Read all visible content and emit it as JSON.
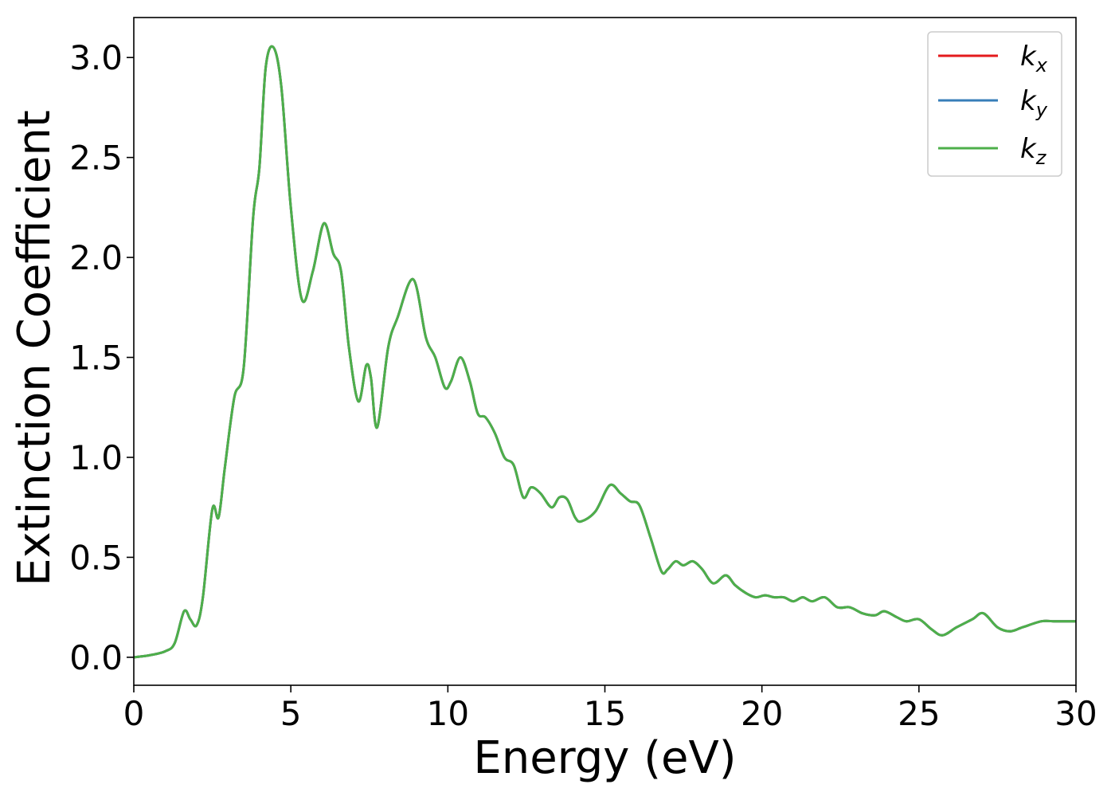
{
  "chart_data": {
    "type": "line",
    "title": "",
    "xlabel": "Energy (eV)",
    "ylabel": "Extinction Coefficient",
    "xlim": [
      0,
      30
    ],
    "ylim": [
      -0.14,
      3.2
    ],
    "xticks": [
      0,
      5,
      10,
      15,
      20,
      25,
      30
    ],
    "xtick_labels": [
      "0",
      "5",
      "10",
      "15",
      "20",
      "25",
      "30"
    ],
    "yticks": [
      0.0,
      0.5,
      1.0,
      1.5,
      2.0,
      2.5,
      3.0
    ],
    "ytick_labels": [
      "0.0",
      "0.5",
      "1.0",
      "1.5",
      "2.0",
      "2.5",
      "3.0"
    ],
    "grid": false,
    "legend_position": "top-right",
    "x": [
      0,
      0.5,
      1.0,
      1.3,
      1.6,
      1.8,
      2.0,
      2.2,
      2.5,
      2.7,
      2.9,
      3.2,
      3.5,
      3.8,
      4.0,
      4.2,
      4.45,
      4.7,
      5.0,
      5.35,
      5.7,
      6.05,
      6.35,
      6.6,
      6.85,
      7.15,
      7.4,
      7.55,
      7.75,
      8.1,
      8.4,
      8.9,
      9.3,
      9.6,
      9.9,
      10.1,
      10.4,
      10.7,
      10.95,
      11.2,
      11.5,
      11.8,
      12.1,
      12.4,
      12.65,
      12.95,
      13.3,
      13.55,
      13.8,
      14.05,
      14.25,
      14.7,
      15.15,
      15.5,
      15.8,
      16.1,
      16.45,
      16.8,
      17.0,
      17.25,
      17.5,
      17.8,
      18.1,
      18.45,
      18.85,
      19.15,
      19.5,
      19.8,
      20.1,
      20.4,
      20.7,
      21.0,
      21.3,
      21.6,
      22.0,
      22.4,
      22.8,
      23.2,
      23.6,
      23.9,
      24.3,
      24.6,
      25.0,
      25.4,
      25.75,
      26.2,
      26.7,
      27.05,
      27.5,
      27.9,
      28.3,
      28.9,
      29.3,
      29.7,
      30.0
    ],
    "series": [
      {
        "name": "k_x",
        "color": "#e41a1c",
        "values": [
          0.0,
          0.01,
          0.03,
          0.07,
          0.23,
          0.19,
          0.16,
          0.3,
          0.74,
          0.7,
          0.95,
          1.3,
          1.45,
          2.2,
          2.45,
          2.95,
          3.05,
          2.85,
          2.25,
          1.79,
          1.93,
          2.17,
          2.02,
          1.93,
          1.55,
          1.28,
          1.46,
          1.4,
          1.15,
          1.55,
          1.7,
          1.89,
          1.6,
          1.5,
          1.35,
          1.38,
          1.5,
          1.38,
          1.22,
          1.2,
          1.12,
          1.0,
          0.96,
          0.8,
          0.85,
          0.82,
          0.75,
          0.8,
          0.79,
          0.7,
          0.68,
          0.73,
          0.86,
          0.82,
          0.78,
          0.76,
          0.6,
          0.43,
          0.44,
          0.48,
          0.46,
          0.48,
          0.44,
          0.37,
          0.41,
          0.36,
          0.32,
          0.3,
          0.31,
          0.3,
          0.3,
          0.28,
          0.3,
          0.28,
          0.3,
          0.25,
          0.25,
          0.22,
          0.21,
          0.23,
          0.2,
          0.18,
          0.19,
          0.14,
          0.11,
          0.15,
          0.19,
          0.22,
          0.15,
          0.13,
          0.15,
          0.18,
          0.18,
          0.18,
          0.18
        ]
      },
      {
        "name": "k_y",
        "color": "#377eb8",
        "values": [
          0.0,
          0.01,
          0.03,
          0.07,
          0.23,
          0.19,
          0.16,
          0.3,
          0.74,
          0.7,
          0.95,
          1.3,
          1.45,
          2.2,
          2.45,
          2.95,
          3.05,
          2.85,
          2.25,
          1.79,
          1.93,
          2.17,
          2.02,
          1.93,
          1.55,
          1.28,
          1.46,
          1.4,
          1.15,
          1.55,
          1.7,
          1.89,
          1.6,
          1.5,
          1.35,
          1.38,
          1.5,
          1.38,
          1.22,
          1.2,
          1.12,
          1.0,
          0.96,
          0.8,
          0.85,
          0.82,
          0.75,
          0.8,
          0.79,
          0.7,
          0.68,
          0.73,
          0.86,
          0.82,
          0.78,
          0.76,
          0.6,
          0.43,
          0.44,
          0.48,
          0.46,
          0.48,
          0.44,
          0.37,
          0.41,
          0.36,
          0.32,
          0.3,
          0.31,
          0.3,
          0.3,
          0.28,
          0.3,
          0.28,
          0.3,
          0.25,
          0.25,
          0.22,
          0.21,
          0.23,
          0.2,
          0.18,
          0.19,
          0.14,
          0.11,
          0.15,
          0.19,
          0.22,
          0.15,
          0.13,
          0.15,
          0.18,
          0.18,
          0.18,
          0.18
        ]
      },
      {
        "name": "k_z",
        "color": "#4daf4a",
        "values": [
          0.0,
          0.01,
          0.03,
          0.07,
          0.23,
          0.19,
          0.16,
          0.3,
          0.74,
          0.7,
          0.95,
          1.3,
          1.45,
          2.2,
          2.45,
          2.95,
          3.05,
          2.85,
          2.25,
          1.79,
          1.93,
          2.17,
          2.02,
          1.93,
          1.55,
          1.28,
          1.46,
          1.4,
          1.15,
          1.55,
          1.7,
          1.89,
          1.6,
          1.5,
          1.35,
          1.38,
          1.5,
          1.38,
          1.22,
          1.2,
          1.12,
          1.0,
          0.96,
          0.8,
          0.85,
          0.82,
          0.75,
          0.8,
          0.79,
          0.7,
          0.68,
          0.73,
          0.86,
          0.82,
          0.78,
          0.76,
          0.6,
          0.43,
          0.44,
          0.48,
          0.46,
          0.48,
          0.44,
          0.37,
          0.41,
          0.36,
          0.32,
          0.3,
          0.31,
          0.3,
          0.3,
          0.28,
          0.3,
          0.28,
          0.3,
          0.25,
          0.25,
          0.22,
          0.21,
          0.23,
          0.2,
          0.18,
          0.19,
          0.14,
          0.11,
          0.15,
          0.19,
          0.22,
          0.15,
          0.13,
          0.15,
          0.18,
          0.18,
          0.18,
          0.18
        ]
      }
    ],
    "legend": [
      {
        "base": "k",
        "sub": "x",
        "color": "#e41a1c"
      },
      {
        "base": "k",
        "sub": "y",
        "color": "#377eb8"
      },
      {
        "base": "k",
        "sub": "z",
        "color": "#4daf4a"
      }
    ]
  }
}
